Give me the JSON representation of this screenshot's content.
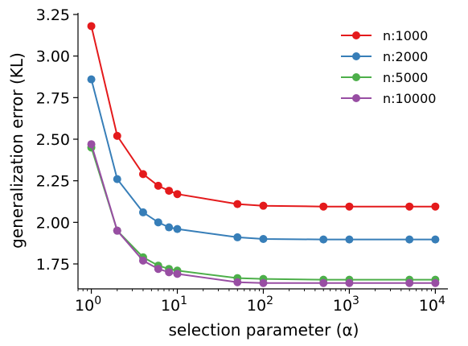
{
  "chart_data": {
    "type": "line",
    "xscale": "log",
    "xlabel": "selection parameter (α)",
    "ylabel": "generalization error (KL)",
    "xlim": [
      0.7,
      14000
    ],
    "ylim": [
      1.6,
      3.25
    ],
    "yticks": [
      "1.75",
      "2.00",
      "2.25",
      "2.50",
      "2.75",
      "3.00",
      "3.25"
    ],
    "ytick_values": [
      1.75,
      2.0,
      2.25,
      2.5,
      2.75,
      3.0,
      3.25
    ],
    "xticks": [
      {
        "value": 1,
        "base": "10",
        "exp": "0"
      },
      {
        "value": 10,
        "base": "10",
        "exp": "1"
      },
      {
        "value": 100,
        "base": "10",
        "exp": "2"
      },
      {
        "value": 1000,
        "base": "10",
        "exp": "3"
      },
      {
        "value": 10000,
        "base": "10",
        "exp": "4"
      }
    ],
    "x": [
      1,
      2,
      4,
      6,
      8,
      10,
      50,
      100,
      500,
      1000,
      5000,
      10000
    ],
    "series": [
      {
        "name": "n:1000",
        "color": "#e41a1c",
        "values": [
          3.18,
          2.52,
          2.29,
          2.22,
          2.19,
          2.17,
          2.11,
          2.1,
          2.095,
          2.095,
          2.095,
          2.095
        ]
      },
      {
        "name": "n:2000",
        "color": "#377eb8",
        "values": [
          2.86,
          2.26,
          2.06,
          2.0,
          1.97,
          1.96,
          1.91,
          1.9,
          1.897,
          1.897,
          1.897,
          1.897
        ]
      },
      {
        "name": "n:5000",
        "color": "#4daf4a",
        "values": [
          2.45,
          1.95,
          1.79,
          1.74,
          1.72,
          1.71,
          1.665,
          1.66,
          1.655,
          1.655,
          1.655,
          1.655
        ]
      },
      {
        "name": "n:10000",
        "color": "#984ea3",
        "values": [
          2.47,
          1.95,
          1.77,
          1.72,
          1.7,
          1.69,
          1.64,
          1.635,
          1.635,
          1.635,
          1.635,
          1.635
        ]
      }
    ],
    "legend": "top-right",
    "grid": false,
    "spines": "left-bottom"
  }
}
